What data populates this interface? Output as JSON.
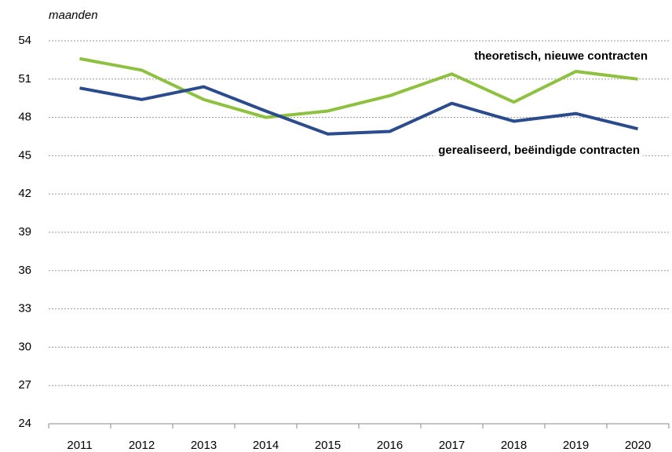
{
  "chart_data": {
    "type": "line",
    "ylabel": "maanden",
    "categories": [
      "2011",
      "2012",
      "2013",
      "2014",
      "2015",
      "2016",
      "2017",
      "2018",
      "2019",
      "2020"
    ],
    "series": [
      {
        "name": "theoretisch, nieuwe contracten",
        "color": "#8dc13f",
        "values": [
          52.6,
          51.7,
          49.4,
          48.0,
          48.5,
          49.7,
          51.4,
          49.2,
          51.6,
          51.0
        ]
      },
      {
        "name": "gerealiseerd, beëindigde contracten",
        "color": "#2a4b8d",
        "values": [
          50.3,
          49.4,
          50.4,
          48.5,
          46.7,
          46.9,
          49.1,
          47.7,
          48.3,
          47.1
        ]
      }
    ],
    "ylim": [
      24,
      54
    ],
    "yticks": [
      24,
      27,
      30,
      33,
      36,
      39,
      42,
      45,
      48,
      51,
      54
    ],
    "grid": true
  }
}
